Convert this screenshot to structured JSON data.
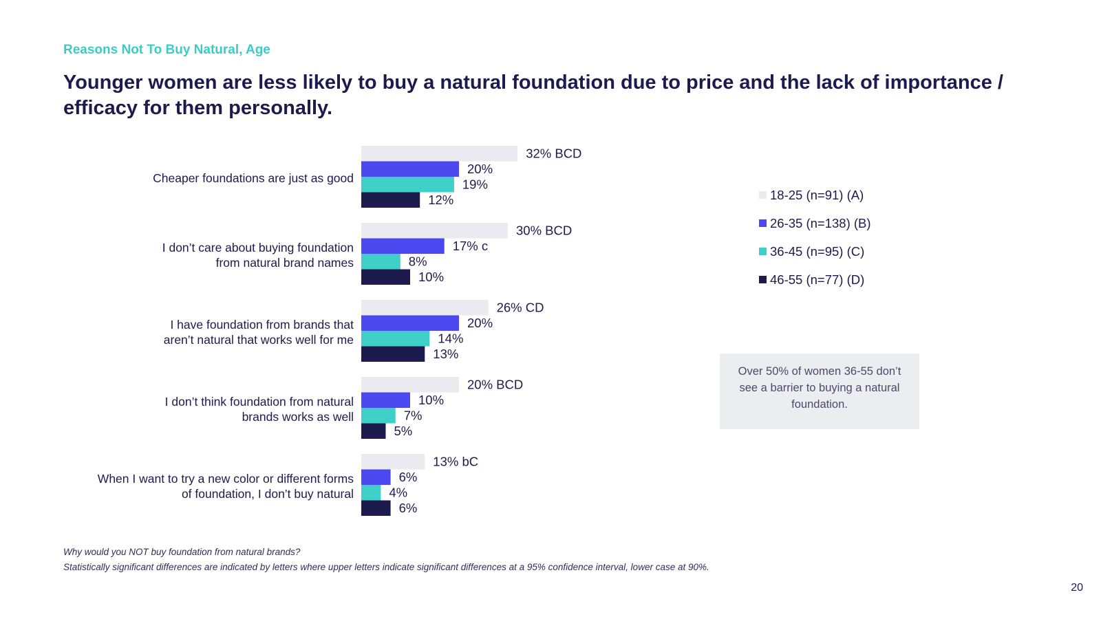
{
  "header": {
    "kicker": "Reasons Not To Buy Natural, Age",
    "headline": "Younger women are less likely to buy a natural foundation due to price and the lack of importance / efficacy for them personally."
  },
  "chart_data": {
    "type": "bar",
    "orientation": "horizontal",
    "categories": [
      [
        "Cheaper foundations are just as good"
      ],
      [
        "I don’t care about buying foundation",
        "from natural brand names"
      ],
      [
        "I have foundation from brands that",
        "aren’t natural that works well for me"
      ],
      [
        "I don’t think foundation from natural",
        "brands works as well"
      ],
      [
        "When I want to try a new color or different forms",
        "of foundation, I don’t buy natural"
      ]
    ],
    "series": [
      {
        "name": "18-25 (n=91) (A)",
        "color": "#ebebef",
        "values": [
          32,
          30,
          26,
          20,
          13
        ],
        "labels": [
          "32% BCD",
          "30% BCD",
          "26% CD",
          "20% BCD",
          "13% bC"
        ]
      },
      {
        "name": "26-35 (n=138) (B)",
        "color": "#4a48ee",
        "values": [
          20,
          17,
          20,
          10,
          6
        ],
        "labels": [
          "20%",
          "17% c",
          "20%",
          "10%",
          "6%"
        ]
      },
      {
        "name": "36-45 (n=95) (C)",
        "color": "#3ecfc8",
        "values": [
          19,
          8,
          14,
          7,
          4
        ],
        "labels": [
          "19%",
          "8%",
          "14%",
          "7%",
          "4%"
        ]
      },
      {
        "name": "46-55 (n=77) (D)",
        "color": "#1d1a4e",
        "values": [
          12,
          10,
          13,
          5,
          6
        ],
        "labels": [
          "12%",
          "10%",
          "13%",
          "5%",
          "6%"
        ]
      }
    ],
    "xlim": [
      0,
      100
    ],
    "grid": false,
    "legend_position": "right"
  },
  "callout": "Over 50% of women 36-55 don’t see a barrier to buying a natural foundation.",
  "footnotes": [
    "Why would you NOT buy foundation from natural brands?",
    "Statistically significant differences are indicated by letters where upper letters indicate significant differences at a 95% confidence interval, lower case at 90%."
  ],
  "page_number": "20"
}
